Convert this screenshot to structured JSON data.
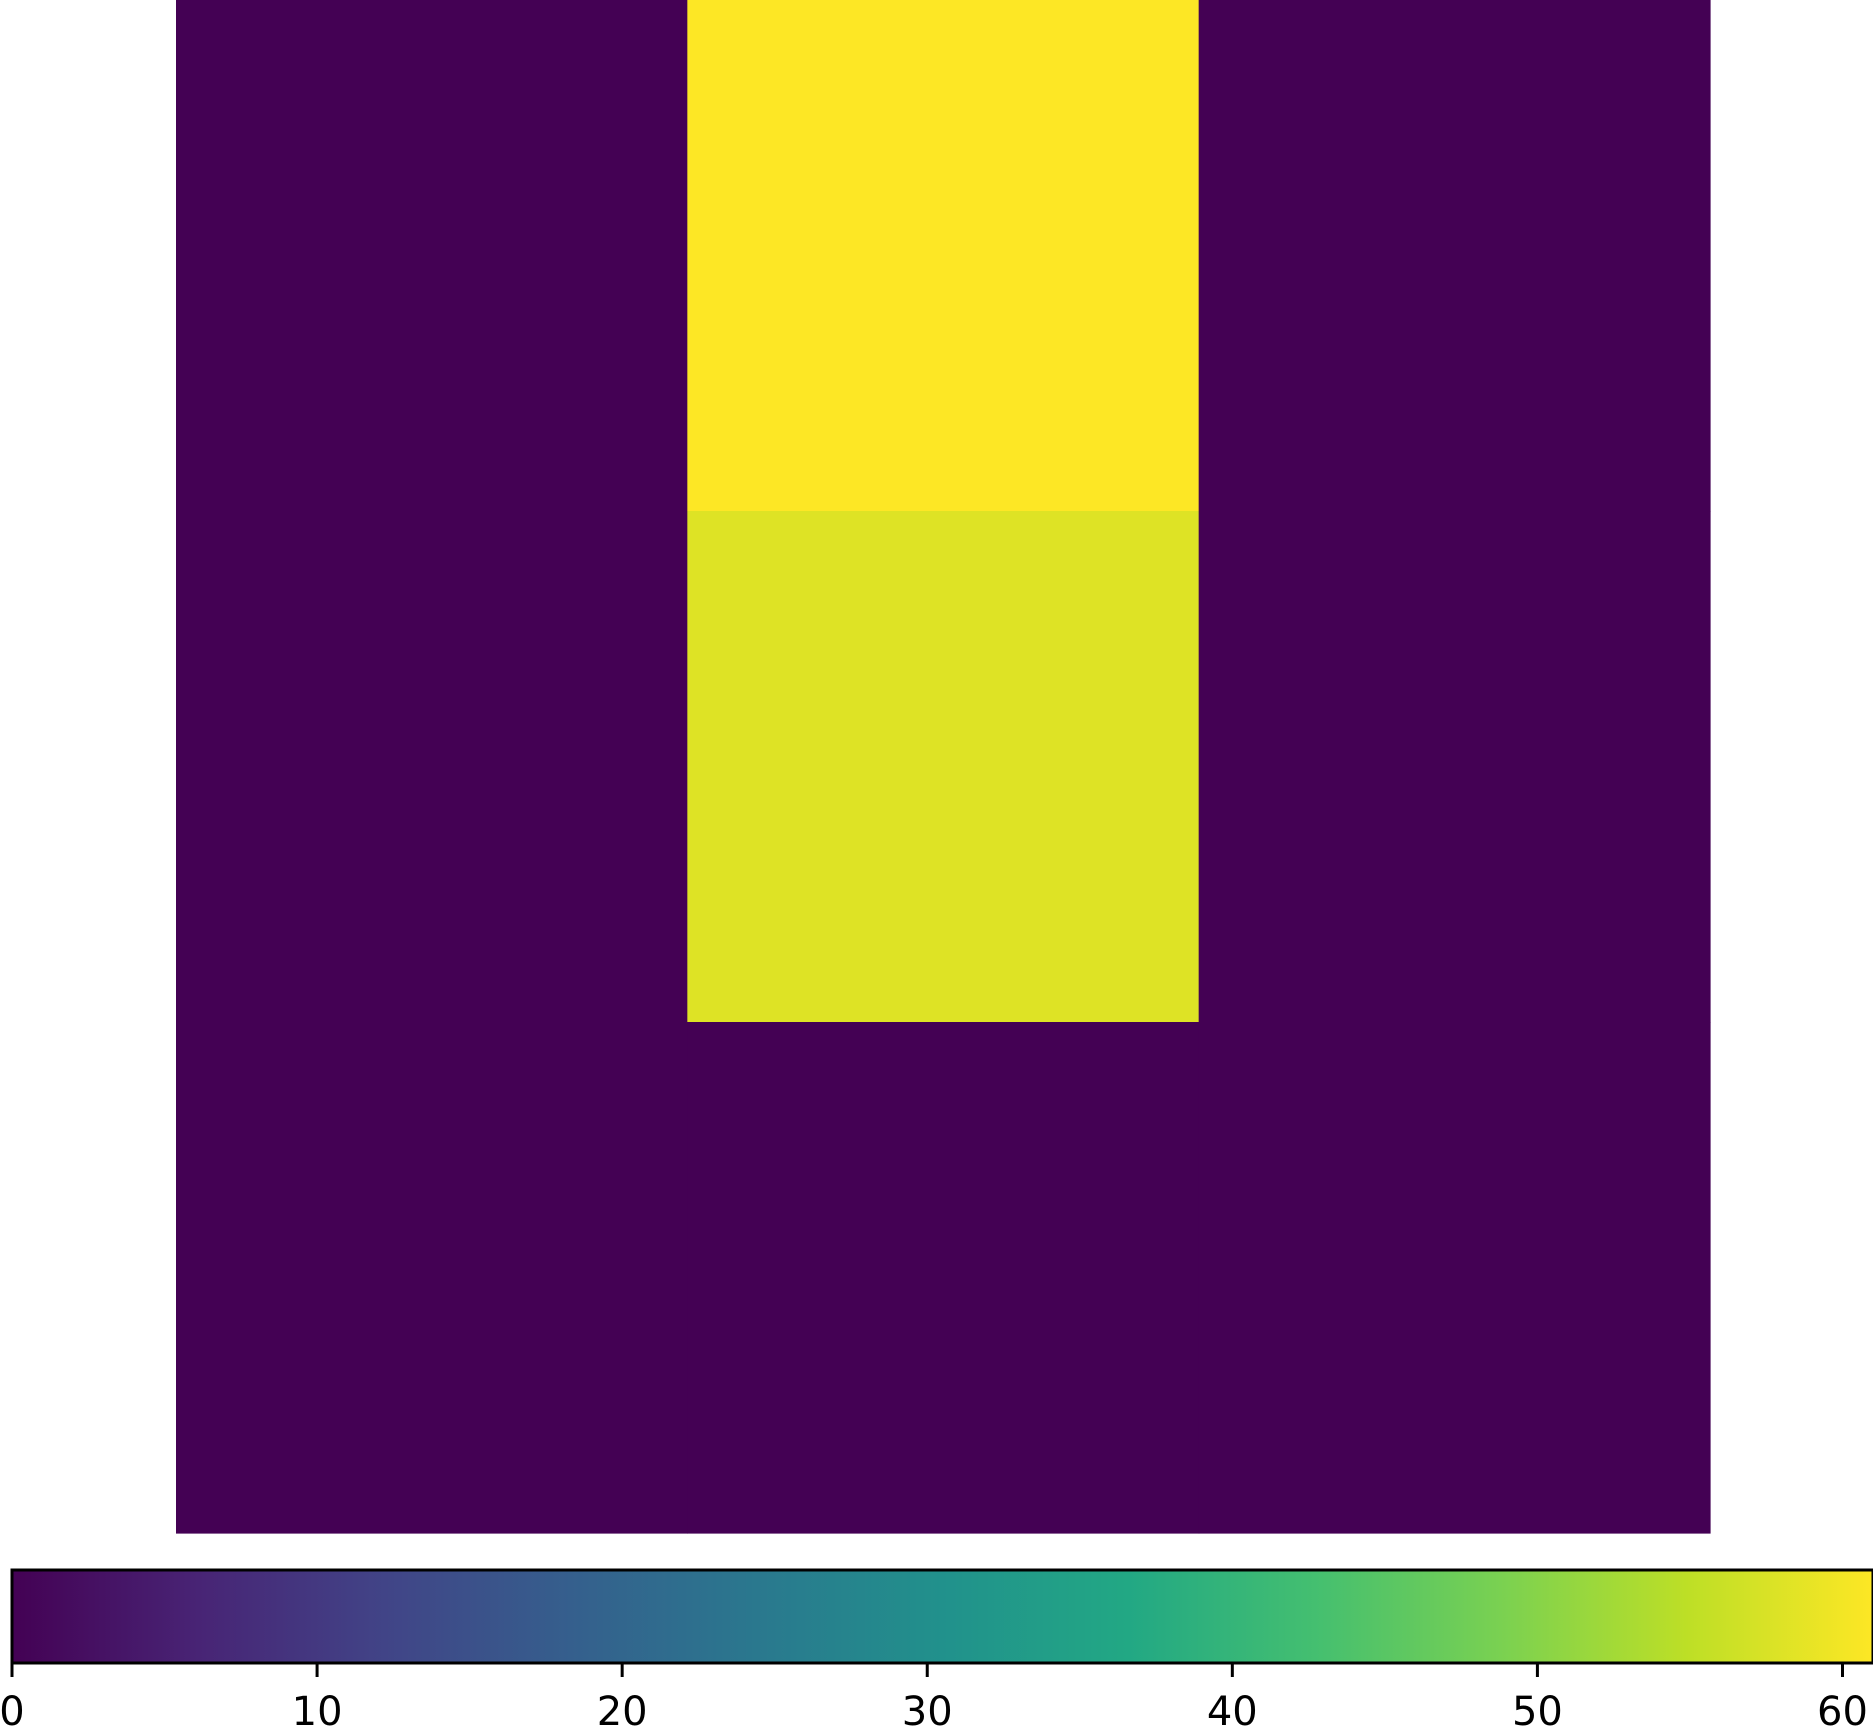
{
  "chart_data": {
    "type": "heatmap",
    "title": "",
    "xlabel": "",
    "ylabel": "",
    "rows": 3,
    "cols": 3,
    "values": [
      [
        0,
        61,
        0
      ],
      [
        0,
        58,
        0
      ],
      [
        0,
        0,
        0
      ]
    ],
    "colormap": "viridis",
    "colorbar": {
      "orientation": "horizontal",
      "placement": "bottom",
      "range": [
        0,
        61
      ],
      "ticks": [
        0,
        10,
        20,
        30,
        40,
        50,
        60
      ],
      "tick_labels": [
        "0",
        "10",
        "20",
        "30",
        "40",
        "50",
        "60"
      ]
    },
    "grid": false,
    "axes_visible": false
  }
}
